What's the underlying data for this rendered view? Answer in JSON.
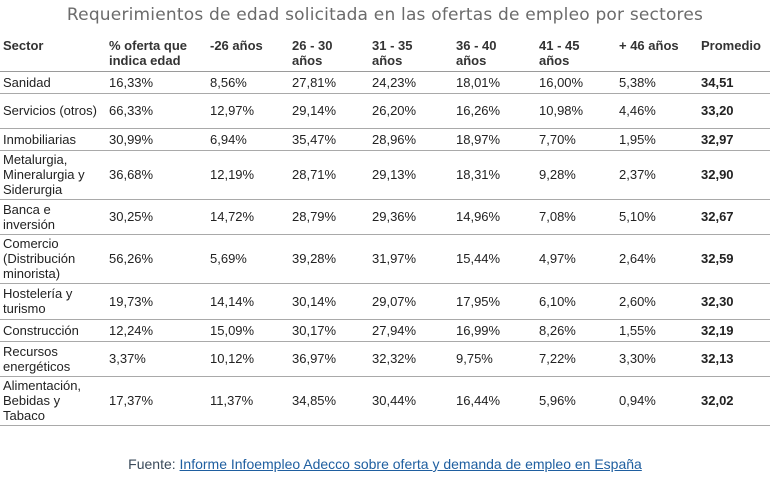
{
  "title": "Requerimientos de edad solicitada en las ofertas de empleo por sectores",
  "headers": {
    "sector": "Sector",
    "pct_line1": "% oferta que",
    "pct_line2": "indica edad",
    "h26": "-26 años",
    "h26_30_line1": "26 - 30",
    "h26_30_line2": "años",
    "h31_35_line1": "31 - 35",
    "h31_35_line2": "años",
    "h36_40_line1": "36 - 40",
    "h36_40_line2": "años",
    "h41_45_line1": "41 - 45",
    "h41_45_line2": "años",
    "h46": "+ 46 años",
    "promedio": "Promedio"
  },
  "rows": [
    {
      "sector": "Sanidad",
      "pct": "16,33%",
      "a26": "8,56%",
      "a26_30": "27,81%",
      "a31_35": "24,23%",
      "a36_40": "18,01%",
      "a41_45": "16,00%",
      "a46": "5,38%",
      "promedio": "34,51"
    },
    {
      "sector": "Servicios (otros)",
      "pct": "66,33%",
      "a26": "12,97%",
      "a26_30": "29,14%",
      "a31_35": "26,20%",
      "a36_40": "16,26%",
      "a41_45": "10,98%",
      "a46": "4,46%",
      "promedio": "33,20"
    },
    {
      "sector": "Inmobiliarias",
      "pct": "30,99%",
      "a26": "6,94%",
      "a26_30": "35,47%",
      "a31_35": "28,96%",
      "a36_40": "18,97%",
      "a41_45": "7,70%",
      "a46": "1,95%",
      "promedio": "32,97"
    },
    {
      "sector": "Metalurgia, Mineralurgia y Siderurgia",
      "pct": "36,68%",
      "a26": "12,19%",
      "a26_30": "28,71%",
      "a31_35": "29,13%",
      "a36_40": "18,31%",
      "a41_45": "9,28%",
      "a46": "2,37%",
      "promedio": "32,90"
    },
    {
      "sector": "Banca e inversión",
      "pct": "30,25%",
      "a26": "14,72%",
      "a26_30": "28,79%",
      "a31_35": "29,36%",
      "a36_40": "14,96%",
      "a41_45": "7,08%",
      "a46": "5,10%",
      "promedio": "32,67"
    },
    {
      "sector": "Comercio (Distribución minorista)",
      "pct": "56,26%",
      "a26": "5,69%",
      "a26_30": "39,28%",
      "a31_35": "31,97%",
      "a36_40": "15,44%",
      "a41_45": "4,97%",
      "a46": "2,64%",
      "promedio": "32,59"
    },
    {
      "sector": "Hostelería y turismo",
      "pct": "19,73%",
      "a26": "14,14%",
      "a26_30": "30,14%",
      "a31_35": "29,07%",
      "a36_40": "17,95%",
      "a41_45": "6,10%",
      "a46": "2,60%",
      "promedio": "32,30"
    },
    {
      "sector": "Construcción",
      "pct": "12,24%",
      "a26": "15,09%",
      "a26_30": "30,17%",
      "a31_35": "27,94%",
      "a36_40": "16,99%",
      "a41_45": "8,26%",
      "a46": "1,55%",
      "promedio": "32,19"
    },
    {
      "sector": "Recursos energéticos",
      "pct": "3,37%",
      "a26": "10,12%",
      "a26_30": "36,97%",
      "a31_35": "32,32%",
      "a36_40": "9,75%",
      "a41_45": "7,22%",
      "a46": "3,30%",
      "promedio": "32,13"
    },
    {
      "sector": "Alimentación, Bebidas y Tabaco",
      "pct": "17,37%",
      "a26": "11,37%",
      "a26_30": "34,85%",
      "a31_35": "30,44%",
      "a36_40": "16,44%",
      "a41_45": "5,96%",
      "a46": "0,94%",
      "promedio": "32,02"
    }
  ],
  "source": {
    "prefix": "Fuente: ",
    "link_text": "Informe Infoempleo Adecco sobre oferta y demanda de empleo en España"
  }
}
